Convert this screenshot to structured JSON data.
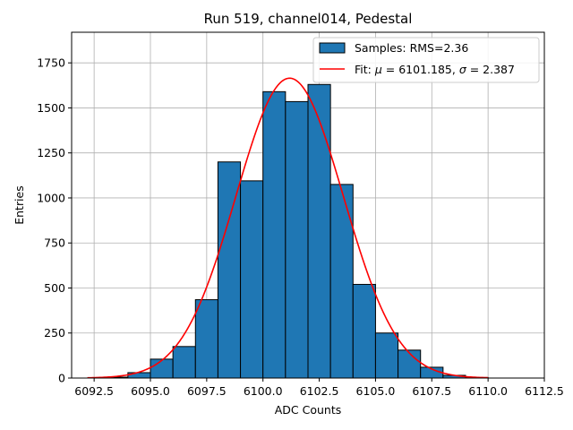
{
  "chart_data": {
    "type": "bar",
    "title": "Run 519, channel014, Pedestal",
    "xlabel": "ADC Counts",
    "ylabel": "Entries",
    "xlim": [
      6091.5,
      6112.5
    ],
    "ylim": [
      0,
      1920
    ],
    "xticks": [
      6092.5,
      6095.0,
      6097.5,
      6100.0,
      6102.5,
      6105.0,
      6107.5,
      6110.0,
      6112.5
    ],
    "xtick_labels": [
      "6092.5",
      "6095.0",
      "6097.5",
      "6100.0",
      "6102.5",
      "6105.0",
      "6107.5",
      "6110.0",
      "6112.5"
    ],
    "yticks": [
      0,
      250,
      500,
      750,
      1000,
      1250,
      1500,
      1750
    ],
    "ytick_labels": [
      "0",
      "250",
      "500",
      "750",
      "1000",
      "1250",
      "1500",
      "1750"
    ],
    "grid": true,
    "legend_position": "top-right",
    "histogram": {
      "name": "Samples: RMS=2.36",
      "color": "#1f77b4",
      "bin_edges": [
        6093,
        6094,
        6095,
        6096,
        6097,
        6098,
        6099,
        6100,
        6101,
        6102,
        6103,
        6104,
        6105,
        6106,
        6107,
        6108,
        6109,
        6110
      ],
      "counts": [
        5,
        30,
        105,
        175,
        435,
        1200,
        1095,
        1590,
        1535,
        1630,
        1075,
        520,
        250,
        155,
        60,
        15,
        3
      ]
    },
    "fit": {
      "name_prefix": "Fit: ",
      "mu_symbol": "μ",
      "mu_text": " = 6101.185, ",
      "sigma_symbol": "σ",
      "sigma_text": " = 2.387",
      "color": "#ff0000",
      "mu": 6101.185,
      "sigma": 2.387,
      "amplitude": 1665,
      "x_range": [
        6092.2,
        6110.0
      ]
    }
  }
}
